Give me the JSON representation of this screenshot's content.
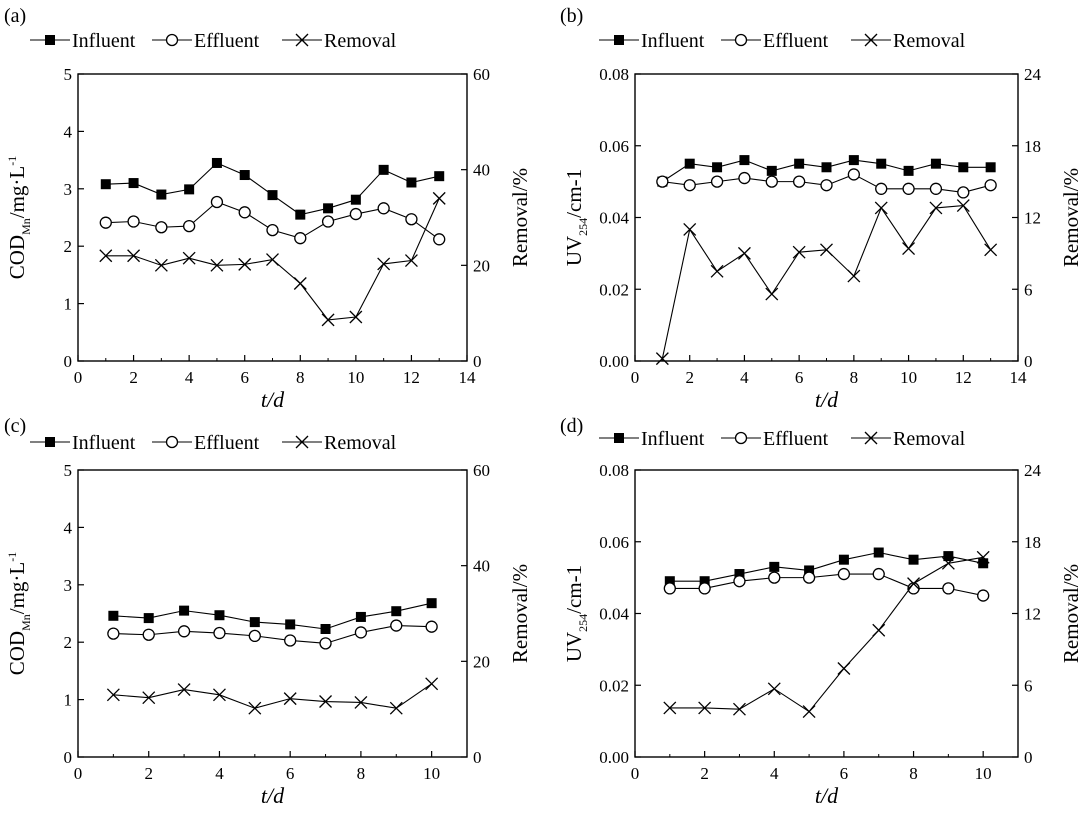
{
  "chart_data": [
    {
      "panel_label": "(a)",
      "type": "line",
      "legend": [
        "Influent",
        "Effluent",
        "Removal"
      ],
      "xlabel": "t/d",
      "ylabel_main": "COD",
      "ylabel_sub": "Mn",
      "ylabel_rest": "/mg·L",
      "ylabel_sup": "-1",
      "ylabel_right": "Removal/%",
      "xlim": [
        0,
        14
      ],
      "xticks": [
        0,
        2,
        4,
        6,
        8,
        10,
        12,
        14
      ],
      "ylim": [
        0,
        5
      ],
      "yticks": [
        0,
        1,
        2,
        3,
        4,
        5
      ],
      "y2lim": [
        0,
        60
      ],
      "y2ticks": [
        0,
        20,
        40,
        60
      ],
      "x": [
        1,
        2,
        3,
        4,
        5,
        6,
        7,
        8,
        9,
        10,
        11,
        12,
        13
      ],
      "series": [
        {
          "name": "Influent",
          "axis": "left",
          "marker": "filled-square",
          "values": [
            3.08,
            3.1,
            2.9,
            2.99,
            3.45,
            3.24,
            2.89,
            2.55,
            2.66,
            2.81,
            3.33,
            3.11,
            3.22
          ]
        },
        {
          "name": "Effluent",
          "axis": "left",
          "marker": "open-circle",
          "values": [
            2.41,
            2.43,
            2.33,
            2.35,
            2.77,
            2.59,
            2.28,
            2.14,
            2.43,
            2.56,
            2.66,
            2.47,
            2.12
          ]
        },
        {
          "name": "Removal",
          "axis": "right",
          "marker": "cross",
          "values": [
            22,
            22,
            20,
            21.5,
            20,
            20.2,
            21.2,
            16.2,
            8.6,
            9.2,
            20.3,
            21,
            34
          ]
        }
      ]
    },
    {
      "panel_label": "(b)",
      "type": "line",
      "legend": [
        "Influent",
        "Effluent",
        "Removal"
      ],
      "xlabel": "t/d",
      "ylabel_main": "UV",
      "ylabel_sub": "254",
      "ylabel_rest": "/cm-1",
      "ylabel_sup": "",
      "ylabel_right": "Removal/%",
      "xlim": [
        0,
        14
      ],
      "xticks": [
        0,
        2,
        4,
        6,
        8,
        10,
        12,
        14
      ],
      "ylim": [
        0,
        0.08
      ],
      "yticks": [
        0.0,
        0.02,
        0.04,
        0.06,
        0.08
      ],
      "ytick_decimals": 2,
      "y2lim": [
        0,
        24
      ],
      "y2ticks": [
        0,
        6,
        12,
        18,
        24
      ],
      "x": [
        1,
        2,
        3,
        4,
        5,
        6,
        7,
        8,
        9,
        10,
        11,
        12,
        13
      ],
      "series": [
        {
          "name": "Influent",
          "axis": "left",
          "marker": "filled-square",
          "values": [
            0.05,
            0.055,
            0.054,
            0.056,
            0.053,
            0.055,
            0.054,
            0.056,
            0.055,
            0.053,
            0.055,
            0.054,
            0.054
          ]
        },
        {
          "name": "Effluent",
          "axis": "left",
          "marker": "open-circle",
          "values": [
            0.05,
            0.049,
            0.05,
            0.051,
            0.05,
            0.05,
            0.049,
            0.052,
            0.048,
            0.048,
            0.048,
            0.047,
            0.049
          ]
        },
        {
          "name": "Removal",
          "axis": "right",
          "marker": "cross",
          "values": [
            0.2,
            11,
            7.5,
            9,
            5.6,
            9.1,
            9.3,
            7.1,
            12.8,
            9.4,
            12.8,
            13,
            9.3
          ]
        }
      ]
    },
    {
      "panel_label": "(c)",
      "type": "line",
      "legend": [
        "Influent",
        "Effluent",
        "Removal"
      ],
      "xlabel": "t/d",
      "ylabel_main": "COD",
      "ylabel_sub": "Mn",
      "ylabel_rest": "/mg·L",
      "ylabel_sup": "-1",
      "ylabel_right": "Removal/%",
      "xlim": [
        0,
        11
      ],
      "xticks": [
        0,
        2,
        4,
        6,
        8,
        10
      ],
      "ylim": [
        0,
        5
      ],
      "yticks": [
        0,
        1,
        2,
        3,
        4,
        5
      ],
      "y2lim": [
        0,
        60
      ],
      "y2ticks": [
        0,
        20,
        40,
        60
      ],
      "x": [
        1,
        2,
        3,
        4,
        5,
        6,
        7,
        8,
        9,
        10
      ],
      "series": [
        {
          "name": "Influent",
          "axis": "left",
          "marker": "filled-square",
          "values": [
            2.46,
            2.42,
            2.55,
            2.47,
            2.35,
            2.31,
            2.23,
            2.44,
            2.54,
            2.68
          ]
        },
        {
          "name": "Effluent",
          "axis": "left",
          "marker": "open-circle",
          "values": [
            2.15,
            2.13,
            2.19,
            2.16,
            2.11,
            2.03,
            1.98,
            2.17,
            2.29,
            2.27
          ]
        },
        {
          "name": "Removal",
          "axis": "right",
          "marker": "cross",
          "values": [
            13,
            12.4,
            14.1,
            13,
            10.2,
            12.2,
            11.6,
            11.4,
            10.2,
            15.3
          ]
        }
      ]
    },
    {
      "panel_label": "(d)",
      "type": "line",
      "legend": [
        "Influent",
        "Effluent",
        "Removal"
      ],
      "xlabel": "t/d",
      "ylabel_main": "UV",
      "ylabel_sub": "254",
      "ylabel_rest": "/cm-1",
      "ylabel_sup": "",
      "ylabel_right": "Removal/%",
      "xlim": [
        0,
        11
      ],
      "xticks": [
        0,
        2,
        4,
        6,
        8,
        10
      ],
      "ylim": [
        0,
        0.08
      ],
      "yticks": [
        0.0,
        0.02,
        0.04,
        0.06,
        0.08
      ],
      "ytick_decimals": 2,
      "y2lim": [
        0,
        24
      ],
      "y2ticks": [
        0,
        6,
        12,
        18,
        24
      ],
      "x": [
        1,
        2,
        3,
        4,
        5,
        6,
        7,
        8,
        9,
        10
      ],
      "series": [
        {
          "name": "Influent",
          "axis": "left",
          "marker": "filled-square",
          "values": [
            0.049,
            0.049,
            0.051,
            0.053,
            0.052,
            0.055,
            0.057,
            0.055,
            0.056,
            0.054
          ]
        },
        {
          "name": "Effluent",
          "axis": "left",
          "marker": "open-circle",
          "values": [
            0.047,
            0.047,
            0.049,
            0.05,
            0.05,
            0.051,
            0.051,
            0.047,
            0.047,
            0.045
          ]
        },
        {
          "name": "Removal",
          "axis": "right",
          "marker": "cross",
          "values": [
            4.1,
            4.1,
            4,
            5.7,
            3.8,
            7.4,
            10.6,
            14.5,
            16.2,
            16.7
          ]
        }
      ]
    }
  ]
}
